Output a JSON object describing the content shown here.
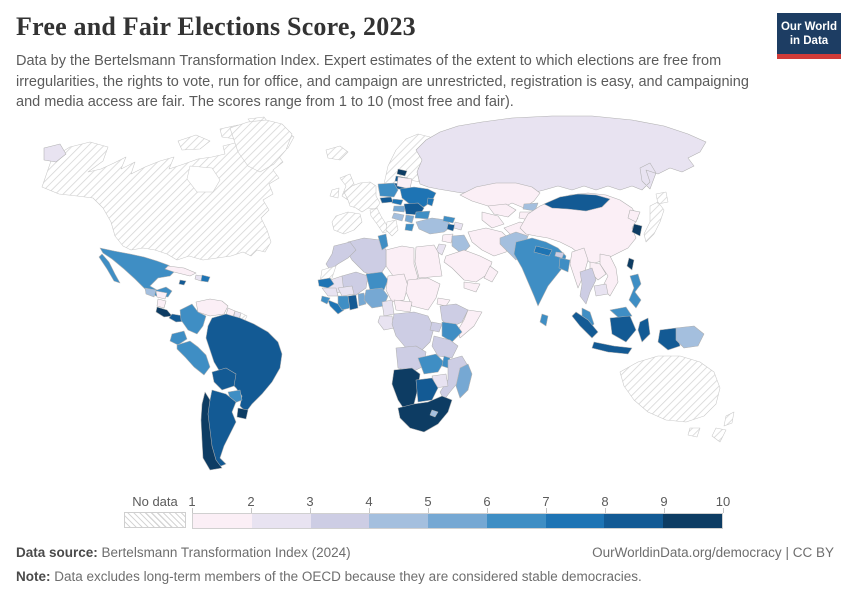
{
  "header": {
    "title": "Free and Fair Elections Score, 2023",
    "subtitle": "Data by the Bertelsmann Transformation Index. Expert estimates of the extent to which elections are free from irregularities, the rights to vote, run for office, and campaign are unrestricted, registration is easy, and campaigning and media access are fair. The scores range from 1 to 10 (most free and fair).",
    "logo": {
      "line1": "Our World",
      "line2": "in Data",
      "bg_color": "#1d3d63",
      "accent_color": "#d13b38"
    }
  },
  "chart_data": {
    "type": "choropleth",
    "title": "Free and Fair Elections Score, 2023",
    "year": "2023",
    "value_range": [
      1,
      10
    ],
    "legend": {
      "no_data_label": "No data",
      "ticks": [
        "1",
        "2",
        "3",
        "4",
        "5",
        "6",
        "7",
        "8",
        "9",
        "10"
      ]
    },
    "bin_colors": [
      "#fbeff6",
      "#e8e3f1",
      "#cdcde4",
      "#a4bfde",
      "#76a8d3",
      "#3f8ec4",
      "#1e74b4",
      "#135a94",
      "#0d3c63"
    ],
    "no_data_style": {
      "pattern_line": "#d6d6d6",
      "border": "#c9c9c9"
    },
    "regions": {
      "canada-usa": "no_data",
      "arctic-islands": "no_data",
      "greenland": "no_data",
      "iceland": "no_data",
      "uk-ireland": "no_data",
      "scandinavia": "no_data",
      "denmark": "no_data",
      "west-europe": "no_data",
      "greece": "no_data",
      "japan": "no_data",
      "australia": "no_data",
      "new-zealand": "no_data",
      "french-guiana": "no_data",
      "western-sahara": "no_data",
      "chukotka": 2,
      "russia": 2,
      "mexico": 6,
      "guatemala": 4,
      "honduras": 1,
      "nicaragua": 1,
      "costa-rica": 9,
      "panama": 8,
      "cuba": 1,
      "jamaica": 8,
      "haiti": 2,
      "dominican-republic": 7,
      "trinidad-tobago": 8,
      "venezuela": 1,
      "guyana": 1,
      "suriname": 2,
      "colombia": 6,
      "ecuador": 6,
      "peru": 6,
      "brazil": 8,
      "bolivia": 8,
      "paraguay": 6,
      "uruguay": 9,
      "argentina": 8,
      "chile": 9,
      "estonia": 9,
      "latvia": 8,
      "lithuania": 8,
      "poland": 6,
      "czechia": 8,
      "slovakia": 7,
      "hungary": 5,
      "belarus": 1,
      "ukraine": 7,
      "moldova": 7,
      "romania": 8,
      "serbia": 5,
      "croatia-bosnia": 4,
      "bulgaria": 6,
      "albania-north-macedonia": 6,
      "turkey": 4,
      "georgia": 6,
      "armenia": 8,
      "azerbaijan": 2,
      "syria": 1,
      "jordan": 2,
      "iraq": 4,
      "saudi-arabia": 1,
      "yemen": 1,
      "oman": 1,
      "iran": 1,
      "egypt": 1,
      "libya": 1,
      "algeria": 3,
      "tunisia": 6,
      "morocco": 3,
      "mauritania": 2,
      "mali": 3,
      "niger": 6,
      "chad": 1,
      "sudan": 1,
      "eritrea": 1,
      "ethiopia": 3,
      "somalia": 1,
      "senegal": 7,
      "guinea": 2,
      "sierra-leone": 6,
      "liberia": 7,
      "ivory-coast": 6,
      "ghana": 8,
      "togo-benin": 5,
      "burkina-faso": 2,
      "nigeria": 5,
      "cameroon": 2,
      "central-african-republic": 1,
      "gabon-congo": 2,
      "drc": 3,
      "uganda": 3,
      "kenya": 6,
      "tanzania": 3,
      "angola": 3,
      "zambia": 6,
      "malawi": 6,
      "mozambique": 3,
      "zimbabwe": 2,
      "namibia": 9,
      "botswana": 8,
      "south-africa": 9,
      "lesotho": 4,
      "madagascar": 5,
      "kazakhstan": 1,
      "uzbekistan": 1,
      "turkmenistan": 1,
      "kyrgyzstan": 4,
      "tajikistan": 1,
      "afghanistan": 1,
      "pakistan": 4,
      "india": 6,
      "nepal": 7,
      "bhutan": 3,
      "bangladesh": 6,
      "sri-lanka": 6,
      "china": 1,
      "mongolia": 8,
      "north-korea": 1,
      "south-korea": 9,
      "taiwan": 9,
      "myanmar": 1,
      "thailand": 3,
      "laos": 1,
      "vietnam": 1,
      "cambodia": 2,
      "malaysia": 6,
      "philippines": 6,
      "indonesia": 8,
      "papua-new-guinea": 4
    }
  },
  "footer": {
    "source_label": "Data source:",
    "source_text": "Bertelsmann Transformation Index (2024)",
    "link_text": "OurWorldinData.org/democracy",
    "separator": "|",
    "license": "CC BY",
    "note_label": "Note:",
    "note_text": "Data excludes long-term members of the OECD because they are considered stable democracies."
  }
}
